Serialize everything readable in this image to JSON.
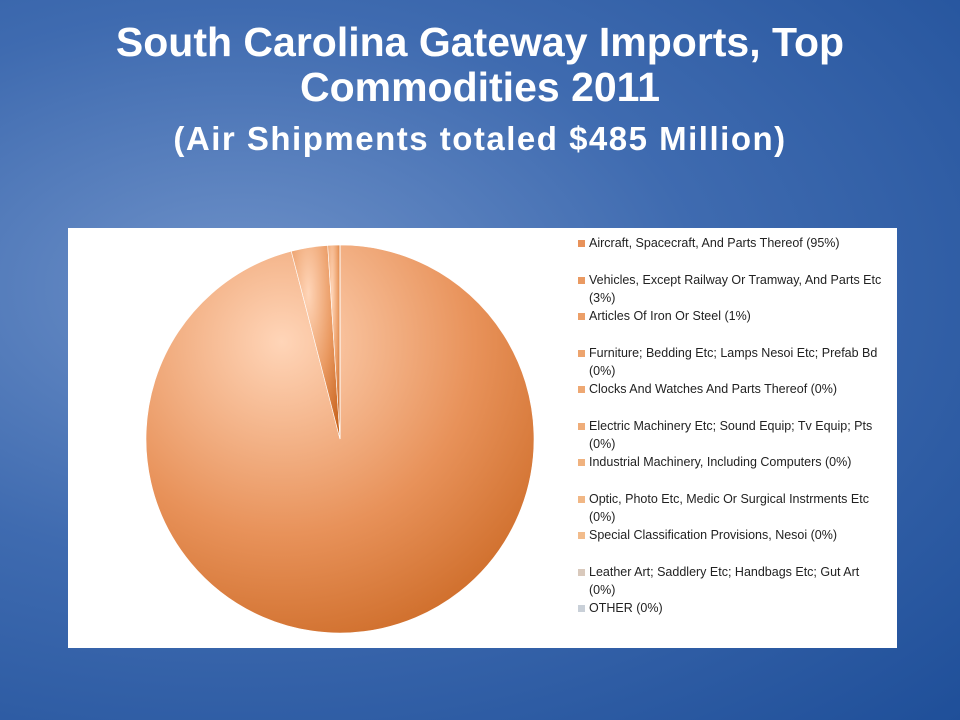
{
  "chart_data": {
    "type": "pie",
    "title": "South Carolina Gateway Imports, Top Commodities 2011",
    "subtitle": "(Air Shipments totaled $485 Million)",
    "categories": [
      "Aircraft, Spacecraft, And Parts Thereof (95%)",
      "Vehicles, Except Railway Or Tramway, And Parts Etc (3%)",
      "Articles Of Iron Or Steel (1%)",
      "Furniture; Bedding Etc; Lamps Nesoi Etc; Prefab Bd (0%)",
      "Clocks And Watches And Parts Thereof (0%)",
      "Electric Machinery Etc; Sound Equip; Tv Equip; Pts (0%)",
      "Industrial Machinery, Including Computers (0%)",
      "Optic, Photo Etc, Medic Or Surgical Instrments Etc (0%)",
      "Special Classification Provisions, Nesoi (0%)",
      "Leather Art; Saddlery Etc; Handbags Etc; Gut Art (0%)",
      "OTHER (0%)"
    ],
    "values": [
      95,
      3,
      1,
      0,
      0,
      0,
      0,
      0,
      0,
      0,
      0
    ],
    "colors": [
      "#e8925a",
      "#ea9a62",
      "#ec9f68",
      "#eda46e",
      "#eea873",
      "#efad79",
      "#f0b27f",
      "#f1b785",
      "#f2bc8c",
      "#d9c9bc",
      "#c9d0d8"
    ]
  }
}
